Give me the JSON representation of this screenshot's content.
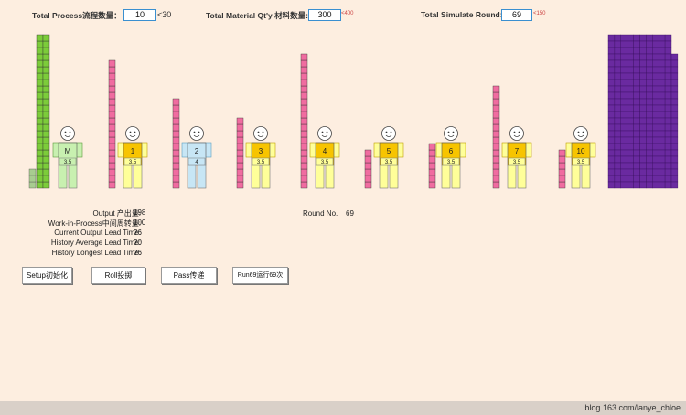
{
  "header": {
    "process_label": "Total Process流程数量：",
    "process_value": "10",
    "process_limit": "<30",
    "material_label": "Total Material Qt'y 材料数量:",
    "material_value": "300",
    "material_limit": "<400",
    "round_label": "Total Simulate Round:",
    "round_value": "69",
    "round_limit": "<150"
  },
  "stations": [
    {
      "label": "M",
      "cap": "3.5",
      "color": "#c8f0b0",
      "border": "#5a9a3a",
      "wip_before": 0,
      "wip_after": 0,
      "small_wip": 3
    },
    {
      "label": "1",
      "cap": "3.5",
      "color": "#ffff99",
      "border": "#c0a000",
      "wip_before": 20
    },
    {
      "label": "2",
      "cap": "4",
      "color": "#c7e6f5",
      "border": "#5a9ec0",
      "wip_before": 14
    },
    {
      "label": "3",
      "cap": "3.5",
      "color": "#ffff99",
      "border": "#c0a000",
      "wip_before": 11
    },
    {
      "label": "4",
      "cap": "3.5",
      "color": "#ffff99",
      "border": "#c0a000",
      "wip_before": 21
    },
    {
      "label": "5",
      "cap": "3.5",
      "color": "#ffff99",
      "border": "#c0a000",
      "wip_before": 6
    },
    {
      "label": "6",
      "cap": "3.5",
      "color": "#ffff99",
      "border": "#c0a000",
      "wip_before": 7
    },
    {
      "label": "7",
      "cap": "3.5",
      "color": "#ffff99",
      "border": "#c0a000",
      "wip_before": 16
    },
    {
      "label": "10",
      "cap": "3.5",
      "color": "#ffff99",
      "border": "#c0a000",
      "wip_before": 6
    }
  ],
  "material_stack_height": 24,
  "output_grid": {
    "cols": 11,
    "rows": 24,
    "color": "#6a2aa0"
  },
  "stats": {
    "output_label": "Output 产出量:",
    "output_value": "198",
    "wip_label": "Work-in-Process中间周转量:",
    "wip_value": "100",
    "cur_lt_label": "Current Output Lead Time:",
    "cur_lt_value": "26",
    "avg_lt_label": "History Average Lead Time:",
    "avg_lt_value": "20",
    "max_lt_label": "History Longest Lead Time:",
    "max_lt_value": "26",
    "round_no_label": "Round No.",
    "round_no_value": "69"
  },
  "buttons": {
    "setup": "Setup初始化",
    "roll": "Roll投掷",
    "pass": "Pass传递",
    "run": "Run69运行69次"
  },
  "footer": "blog.163.com/lanye_chloe",
  "colors": {
    "wip": "#f06ca0",
    "material": "#7ccc3a",
    "output": "#6a2aa0"
  }
}
